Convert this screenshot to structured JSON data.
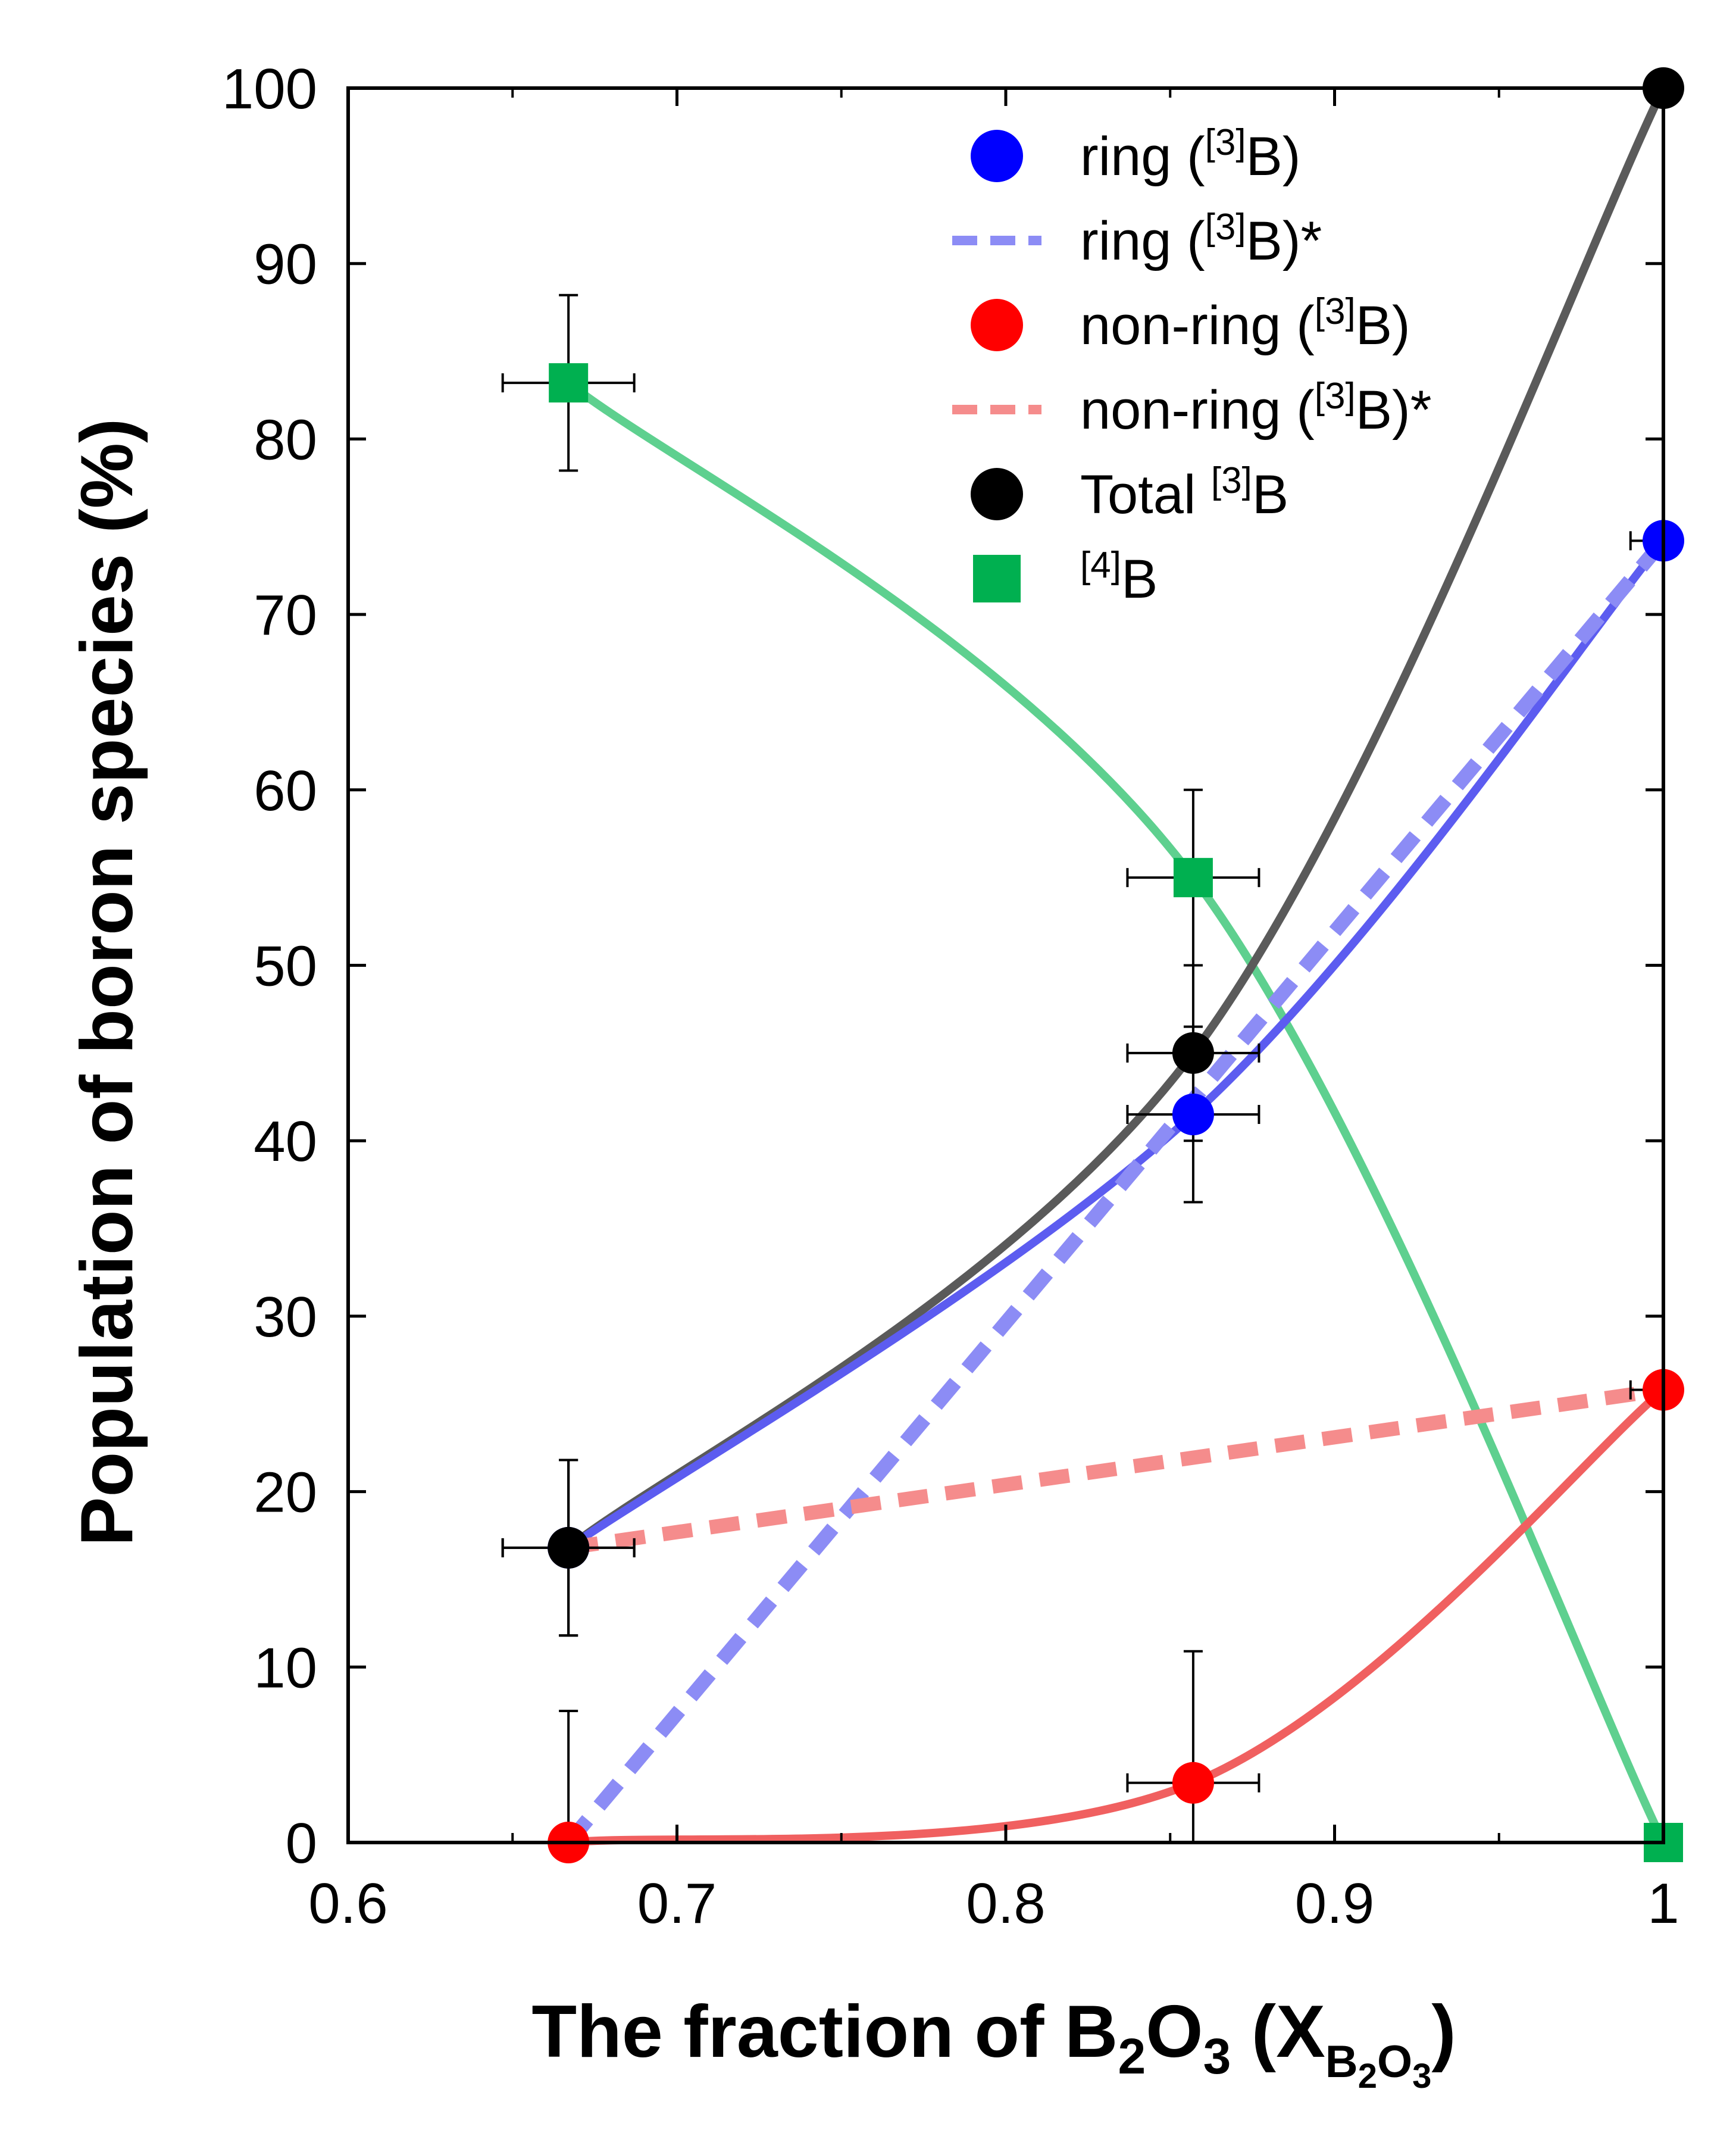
{
  "chart_data": {
    "type": "scatter",
    "xlabel": "The fraction of B2O3 (XB2O3)",
    "ylabel": "Population of boron species (%)",
    "xlim": [
      0.6,
      1.0
    ],
    "ylim": [
      0,
      100
    ],
    "xticks": [
      "0.6",
      "0.7",
      "0.8",
      "0.9",
      "1"
    ],
    "yticks": [
      "0",
      "10",
      "20",
      "30",
      "40",
      "50",
      "60",
      "70",
      "80",
      "90",
      "100"
    ],
    "grid": false,
    "legend_position": "top-right",
    "series": [
      {
        "name": "ring ([3]B)",
        "marker": "circle",
        "color": "#0000ff",
        "curve_color": "#5c5cf0",
        "x": [
          0.667,
          0.857,
          1.0
        ],
        "y": [
          16.8,
          41.5,
          74.2
        ],
        "xerr": [
          0.02,
          0.02,
          0.01
        ],
        "yerr": [
          5.0,
          5.0,
          0
        ]
      },
      {
        "name": "ring ([3]B)*",
        "style": "dashed",
        "color": "#8c8cf5",
        "x": [
          0.667,
          1.0
        ],
        "y": [
          0.0,
          74.2
        ]
      },
      {
        "name": "non-ring ([3]B)",
        "marker": "circle",
        "color": "#ff0000",
        "curve_color": "#f06060",
        "x": [
          0.667,
          0.857,
          1.0
        ],
        "y": [
          0.0,
          3.4,
          25.8
        ],
        "xerr": [
          0,
          0.02,
          0.01
        ],
        "yerr": [
          7.5,
          7.5,
          0
        ]
      },
      {
        "name": "non-ring ([3]B)*",
        "style": "dashed",
        "color": "#f58c8c",
        "x": [
          0.667,
          1.0
        ],
        "y": [
          16.8,
          25.8
        ]
      },
      {
        "name": "Total [3]B",
        "marker": "circle",
        "color": "#000000",
        "curve_color": "#5a5a5a",
        "x": [
          0.667,
          0.857,
          1.0
        ],
        "y": [
          16.8,
          45.0,
          100.0
        ],
        "xerr": [
          0.02,
          0.02,
          0
        ],
        "yerr": [
          5.0,
          5.0,
          0
        ]
      },
      {
        "name": "[4]B",
        "marker": "square",
        "color": "#00b050",
        "curve_color": "#5ed08f",
        "x": [
          0.667,
          0.857,
          1.0
        ],
        "y": [
          83.2,
          55.0,
          0.0
        ],
        "xerr": [
          0.02,
          0.02,
          0
        ],
        "yerr": [
          5.0,
          5.0,
          0
        ]
      }
    ],
    "legend": [
      {
        "pre": "ring (",
        "sup": "[3]",
        "post": "B)",
        "symbol": "circle",
        "color": "#0000ff"
      },
      {
        "pre": "ring (",
        "sup": "[3]",
        "post": "B)*",
        "symbol": "dash",
        "color": "#8c8cf5"
      },
      {
        "pre": "non-ring (",
        "sup": "[3]",
        "post": "B)",
        "symbol": "circle",
        "color": "#ff0000"
      },
      {
        "pre": "non-ring (",
        "sup": "[3]",
        "post": "B)*",
        "symbol": "dash",
        "color": "#f58c8c"
      },
      {
        "pre": "Total ",
        "sup": "[3]",
        "post": "B",
        "symbol": "circle",
        "color": "#000000"
      },
      {
        "pre": "",
        "sup": "[4]",
        "post": "B",
        "symbol": "square",
        "color": "#00b050"
      }
    ]
  }
}
